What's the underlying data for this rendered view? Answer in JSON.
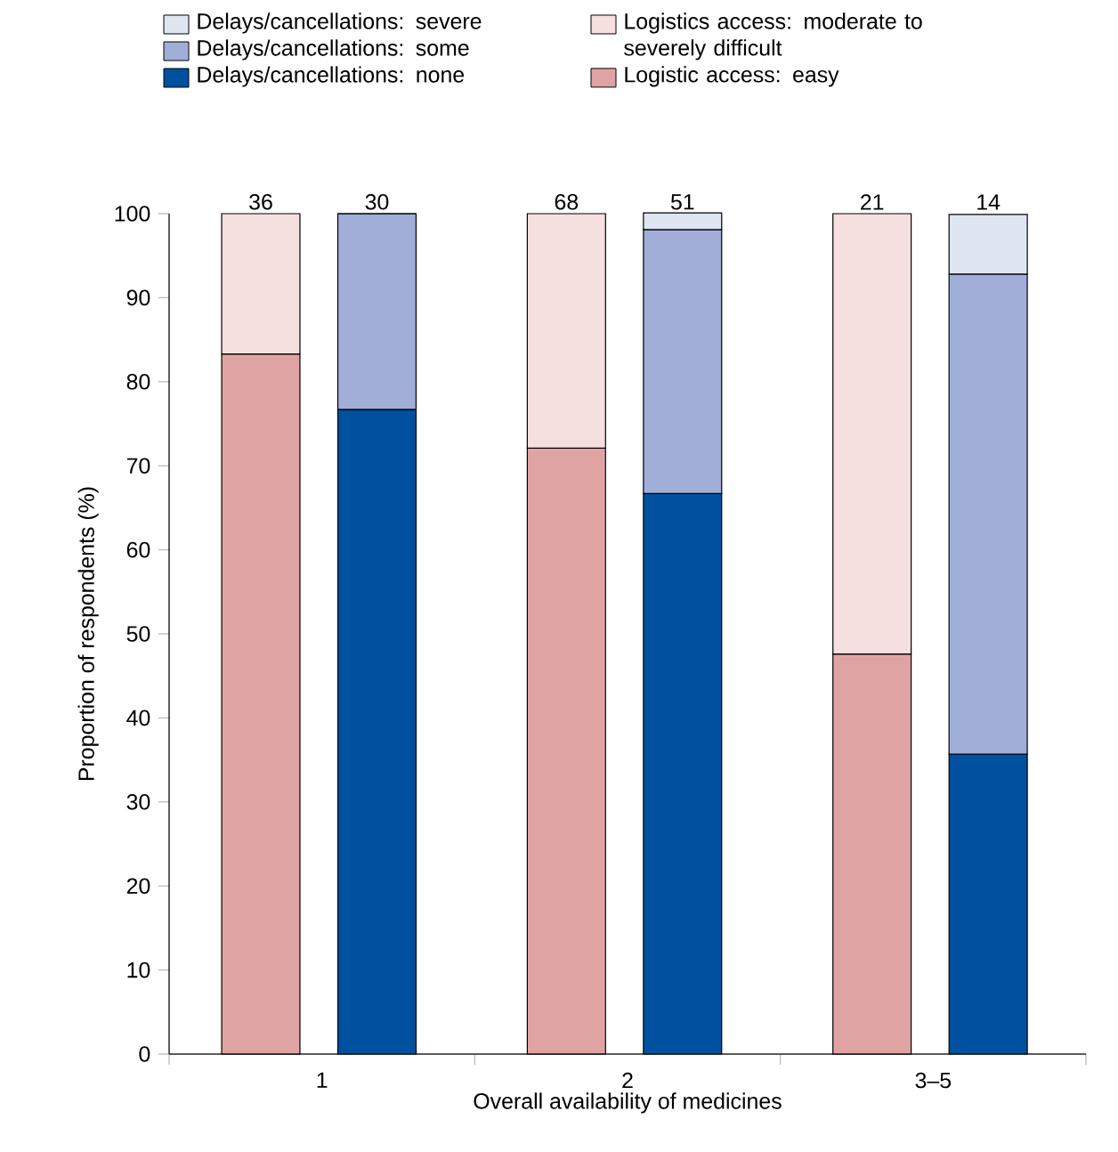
{
  "chart_data": [
    {
      "type": "bar",
      "stacked": true,
      "xlabel": "Overall availability of medicines",
      "ylabel": "Proportion of respondents (%)",
      "xlim": [
        0.5,
        3.5
      ],
      "xticks": [
        {
          "value": 0.5,
          "label": null
        },
        {
          "value": 1,
          "label": "1"
        },
        {
          "value": 1.5,
          "label": null
        },
        {
          "value": 2,
          "label": "2"
        },
        {
          "value": 2.5,
          "label": null
        },
        {
          "value": 3,
          "label": "3–5"
        },
        {
          "value": 3.5,
          "label": null
        }
      ],
      "ylim": [
        0,
        100
      ],
      "yticks": [
        0,
        10,
        20,
        30,
        40,
        50,
        60,
        70,
        80,
        90,
        100
      ],
      "legend": "top",
      "x": [
        0.8,
        1.8,
        2.8
      ],
      "series": [
        {
          "name": "Logistic access: easy",
          "color": "#e0a3a3",
          "values": [
            83.3,
            72.1,
            47.6
          ]
        },
        {
          "name": "Logistics access: moderate to severely difficult",
          "color": "#f6e0df",
          "values": [
            16.7,
            27.9,
            52.4
          ]
        }
      ],
      "annotations": [
        {
          "text": "36",
          "x": 0.8,
          "y": 100
        },
        {
          "text": "68",
          "x": 1.8,
          "y": 100
        },
        {
          "text": "21",
          "x": 2.8,
          "y": 100
        }
      ]
    },
    {
      "type": "bar",
      "stacked": true,
      "xlim": [
        0.5,
        3.5
      ],
      "xticks": [
        {
          "value": 0.5,
          "label": null
        },
        {
          "value": 1.5,
          "label": null
        },
        {
          "value": 2.5,
          "label": null
        },
        {
          "value": 3.5,
          "label": null
        }
      ],
      "ylim": [
        0,
        100
      ],
      "yticks": [
        0,
        10,
        20,
        30,
        40,
        50,
        60,
        70,
        80,
        90,
        100
      ],
      "tick_labels": false,
      "legend": "top",
      "x": [
        1.18,
        2.18,
        3.18
      ],
      "series": [
        {
          "name": "Delays/cancellations: none",
          "color": "#0050a0",
          "values": [
            76.7,
            66.7,
            35.7
          ]
        },
        {
          "name": "Delays/cancellations: some",
          "color": "#a0aed8",
          "values": [
            23.3,
            31.4,
            57.1
          ]
        },
        {
          "name": "Delays/cancellations: severe",
          "color": "#dfe6f2",
          "values": [
            0,
            2.0,
            7.1
          ]
        }
      ],
      "annotations": [
        {
          "text": "30",
          "x": 1.18,
          "y": 100
        },
        {
          "text": "51",
          "x": 2.18,
          "y": 100
        },
        {
          "text": "14",
          "x": 3.18,
          "y": 100
        }
      ]
    }
  ]
}
